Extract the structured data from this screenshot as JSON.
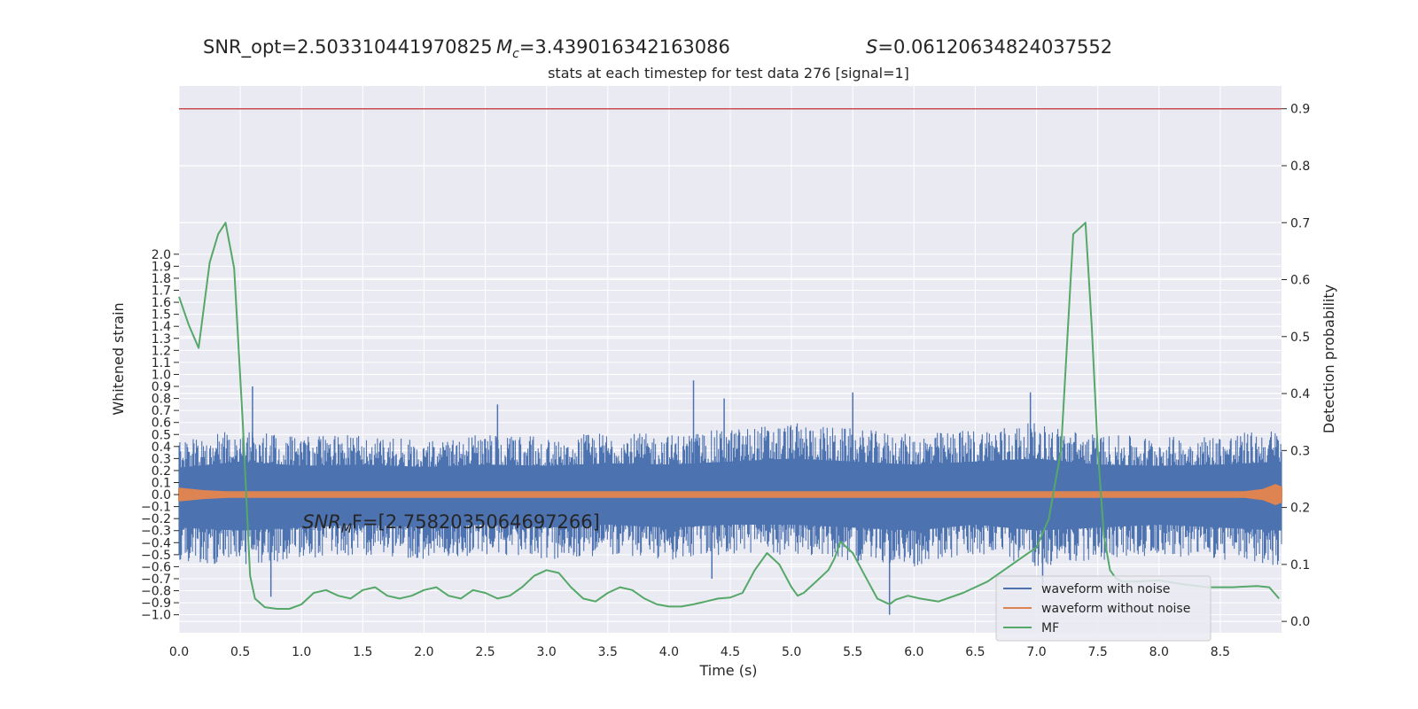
{
  "header": {
    "snr_opt": "SNR_opt=2.503310441970825",
    "mc_symbol": "M",
    "mc_subscript": "c",
    "mc_value": "=3.439016342163086",
    "s_symbol": "S",
    "s_value": "=0.06120634824037552"
  },
  "chart_data": {
    "type": "line",
    "title": "stats at each timestep for test data 276 [signal=1]",
    "xlabel": "Time (s)",
    "ylabel_left": "Whitened strain",
    "ylabel_right": "Detection probability",
    "xlim": [
      0.0,
      9.0
    ],
    "ylim_left": [
      -1.15,
      3.4
    ],
    "ylim_right": [
      -0.02,
      0.94
    ],
    "x_ticks": [
      "0.0",
      "0.5",
      "1.0",
      "1.5",
      "2.0",
      "2.5",
      "3.0",
      "3.5",
      "4.0",
      "4.5",
      "5.0",
      "5.5",
      "6.0",
      "6.5",
      "7.0",
      "7.5",
      "8.0",
      "8.5"
    ],
    "y_left_ticks": [
      "2.0",
      "1.9",
      "1.8",
      "1.7",
      "1.6",
      "1.5",
      "1.4",
      "1.3",
      "1.2",
      "1.1",
      "1.0",
      "0.9",
      "0.8",
      "0.7",
      "0.6",
      "0.5",
      "0.4",
      "0.3",
      "0.2",
      "0.1",
      "0.0",
      "−0.1",
      "−0.2",
      "−0.3",
      "−0.4",
      "−0.5",
      "−0.6",
      "−0.7",
      "−0.8",
      "−0.9",
      "−1.0"
    ],
    "y_right_ticks": [
      "0.0",
      "0.1",
      "0.2",
      "0.3",
      "0.4",
      "0.5",
      "0.6",
      "0.7",
      "0.8",
      "0.9"
    ],
    "threshold": 0.9,
    "grid": true,
    "legend_placement": "lower right",
    "colors": {
      "background": "#eaeaf2",
      "grid": "#ffffff",
      "noise": "#4c72b0",
      "clean": "#dd8452",
      "mf": "#55a868",
      "threshold": "#c44e52"
    },
    "series": [
      {
        "name": "waveform with noise",
        "axis": "left",
        "render": "band",
        "x": [
          0.0,
          0.5,
          1.0,
          1.5,
          2.0,
          2.5,
          3.0,
          3.5,
          4.0,
          4.5,
          5.0,
          5.5,
          6.0,
          6.5,
          7.0,
          7.5,
          8.0,
          8.5,
          9.0
        ],
        "upper": [
          0.45,
          0.55,
          0.48,
          0.5,
          0.46,
          0.5,
          0.48,
          0.52,
          0.5,
          0.55,
          0.6,
          0.55,
          0.5,
          0.55,
          0.6,
          0.5,
          0.48,
          0.5,
          0.55
        ],
        "lower": [
          -0.55,
          -0.6,
          -0.55,
          -0.5,
          -0.55,
          -0.5,
          -0.55,
          -0.5,
          -0.55,
          -0.5,
          -0.5,
          -0.55,
          -0.6,
          -0.5,
          -0.6,
          -0.55,
          -0.5,
          -0.55,
          -0.6
        ],
        "spikes": [
          [
            0.6,
            0.9
          ],
          [
            0.75,
            -0.85
          ],
          [
            2.6,
            0.75
          ],
          [
            4.2,
            0.95
          ],
          [
            4.35,
            -0.7
          ],
          [
            5.8,
            -1.0
          ],
          [
            5.5,
            0.85
          ],
          [
            6.95,
            0.85
          ],
          [
            7.05,
            -0.75
          ],
          [
            4.45,
            0.8
          ]
        ]
      },
      {
        "name": "waveform without noise",
        "axis": "left",
        "render": "band",
        "x": [
          0.0,
          0.1,
          0.2,
          0.4,
          1.0,
          2.0,
          4.0,
          6.0,
          8.0,
          8.7,
          8.85,
          8.95,
          9.0
        ],
        "upper": [
          0.05,
          0.04,
          0.03,
          0.02,
          0.02,
          0.02,
          0.02,
          0.02,
          0.02,
          0.02,
          0.04,
          0.08,
          0.06
        ],
        "lower": [
          -0.05,
          -0.04,
          -0.03,
          -0.02,
          -0.02,
          -0.02,
          -0.02,
          -0.02,
          -0.02,
          -0.02,
          -0.04,
          -0.08,
          -0.06
        ]
      },
      {
        "name": "MF",
        "axis": "right",
        "render": "smooth",
        "x": [
          0.0,
          0.08,
          0.16,
          0.25,
          0.32,
          0.38,
          0.45,
          0.52,
          0.58,
          0.62,
          0.7,
          0.8,
          0.9,
          1.0,
          1.1,
          1.2,
          1.3,
          1.4,
          1.5,
          1.6,
          1.7,
          1.8,
          1.9,
          2.0,
          2.1,
          2.2,
          2.3,
          2.4,
          2.5,
          2.6,
          2.7,
          2.8,
          2.9,
          3.0,
          3.1,
          3.2,
          3.3,
          3.4,
          3.5,
          3.6,
          3.7,
          3.8,
          3.9,
          4.0,
          4.1,
          4.2,
          4.3,
          4.4,
          4.5,
          4.6,
          4.7,
          4.8,
          4.9,
          5.0,
          5.05,
          5.1,
          5.15,
          5.2,
          5.3,
          5.35,
          5.4,
          5.5,
          5.6,
          5.7,
          5.75,
          5.8,
          5.85,
          5.95,
          6.05,
          6.2,
          6.4,
          6.6,
          6.8,
          7.0,
          7.1,
          7.2,
          7.3,
          7.35,
          7.4,
          7.45,
          7.5,
          7.55,
          7.6,
          7.65,
          7.7,
          7.8,
          8.0,
          8.2,
          8.4,
          8.6,
          8.8,
          8.9,
          8.98
        ],
        "y": [
          0.57,
          0.52,
          0.48,
          0.63,
          0.68,
          0.7,
          0.62,
          0.35,
          0.08,
          0.04,
          0.025,
          0.022,
          0.022,
          0.03,
          0.05,
          0.055,
          0.045,
          0.04,
          0.055,
          0.06,
          0.045,
          0.04,
          0.045,
          0.055,
          0.06,
          0.045,
          0.04,
          0.055,
          0.05,
          0.04,
          0.045,
          0.06,
          0.08,
          0.09,
          0.085,
          0.06,
          0.04,
          0.035,
          0.05,
          0.06,
          0.055,
          0.04,
          0.03,
          0.026,
          0.026,
          0.03,
          0.035,
          0.04,
          0.042,
          0.05,
          0.09,
          0.12,
          0.1,
          0.06,
          0.045,
          0.05,
          0.06,
          0.07,
          0.09,
          0.11,
          0.14,
          0.12,
          0.08,
          0.04,
          0.035,
          0.03,
          0.038,
          0.045,
          0.04,
          0.035,
          0.05,
          0.07,
          0.1,
          0.13,
          0.18,
          0.3,
          0.68,
          0.69,
          0.7,
          0.52,
          0.3,
          0.15,
          0.09,
          0.075,
          0.07,
          0.07,
          0.072,
          0.065,
          0.06,
          0.06,
          0.062,
          0.06,
          0.04
        ]
      }
    ],
    "annotations": [
      {
        "text_base": "SNR",
        "text_sub": "M",
        "text_rest": "F=[2.7582035064697266]",
        "x": 1.0,
        "y_left": -0.23
      }
    ],
    "legend": [
      {
        "label": "waveform with noise",
        "color": "#4c72b0"
      },
      {
        "label": "waveform without noise",
        "color": "#dd8452"
      },
      {
        "label": "MF",
        "color": "#55a868"
      }
    ]
  }
}
